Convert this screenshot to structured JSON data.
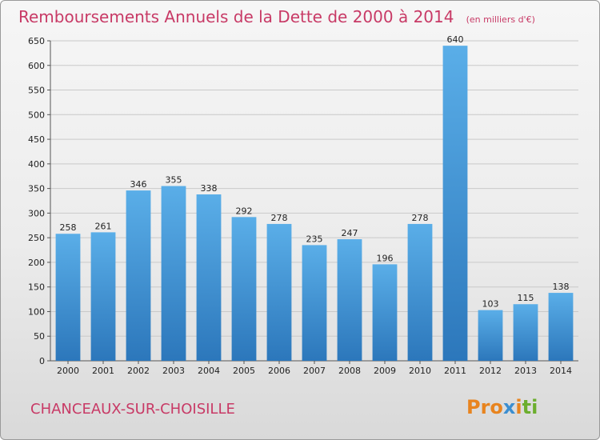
{
  "chart_data": {
    "type": "bar",
    "title": "Remboursements Annuels de la Dette de 2000 à 2014",
    "unit_label": "(en milliers d'€)",
    "categories": [
      "2000",
      "2001",
      "2002",
      "2003",
      "2004",
      "2005",
      "2006",
      "2007",
      "2008",
      "2009",
      "2010",
      "2011",
      "2012",
      "2013",
      "2014"
    ],
    "values": [
      258,
      261,
      346,
      355,
      338,
      292,
      278,
      235,
      247,
      196,
      278,
      640,
      103,
      115,
      138
    ],
    "ylim": [
      0,
      650
    ],
    "ytick_step": 50,
    "grid": true,
    "xlabel": "",
    "ylabel": ""
  },
  "footer": {
    "city": "CHANCEAUX-SUR-CHOISILLE",
    "logo": "Proxiti"
  },
  "colors": {
    "bar_top": "#5aaee8",
    "bar_bottom": "#2c77bb",
    "title": "#c83a66",
    "grid": "#c9c9c9"
  }
}
